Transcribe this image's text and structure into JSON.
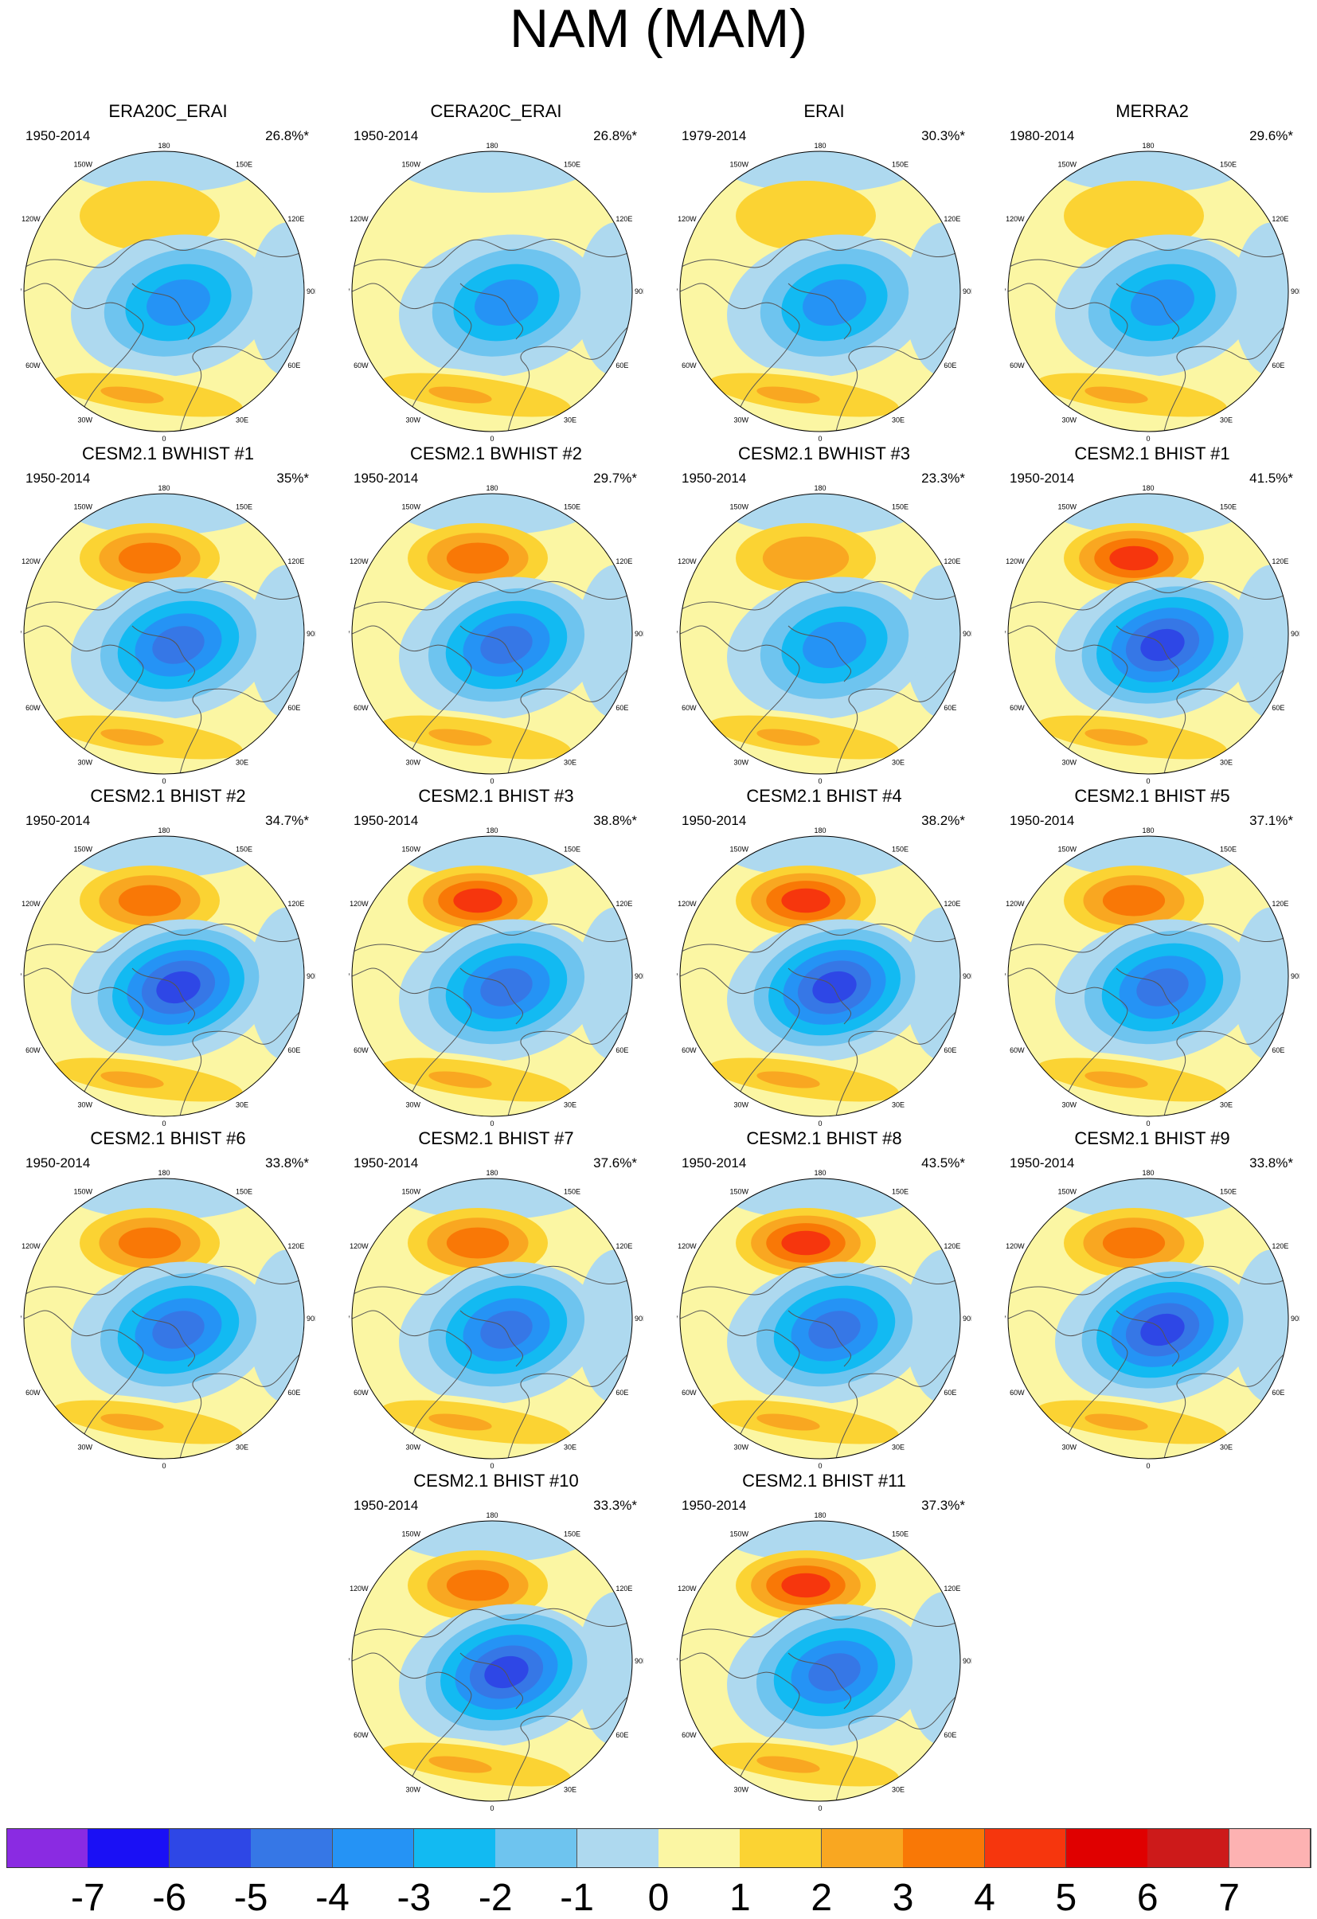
{
  "title": "NAM (MAM)",
  "map_labels": {
    "top": "180",
    "bottom": "0",
    "left_upper": "120W",
    "left_mid": "90W",
    "left_lower": "60W",
    "right_upper": "120E",
    "right_mid": "90E",
    "right_lower": "60E",
    "top_left": "150W",
    "top_right": "150E",
    "bottom_left": "30W",
    "bottom_right": "30E"
  },
  "panels": [
    {
      "title": "ERA20C_ERAI",
      "period": "1950-2014",
      "pct": "26.8%*",
      "pac": 1,
      "atl": 2,
      "arc": 3,
      "pacPeak": 1,
      "arcPeak": 4
    },
    {
      "title": "CERA20C_ERAI",
      "period": "1950-2014",
      "pct": "26.8%*",
      "pac": 0,
      "atl": 2,
      "arc": 3,
      "pacPeak": 0,
      "arcPeak": 4
    },
    {
      "title": "ERAI",
      "period": "1979-2014",
      "pct": "30.3%*",
      "pac": 1,
      "atl": 2,
      "arc": 3,
      "pacPeak": 1,
      "arcPeak": 4
    },
    {
      "title": "MERRA2",
      "period": "1980-2014",
      "pct": "29.6%*",
      "pac": 1,
      "atl": 2,
      "arc": 3,
      "pacPeak": 1,
      "arcPeak": 4
    },
    {
      "title": "CESM2.1 BWHIST #1",
      "period": "1950-2014",
      "pct": "35%*",
      "pac": 3,
      "atl": 2,
      "arc": 4,
      "pacPeak": 3,
      "arcPeak": 5
    },
    {
      "title": "CESM2.1 BWHIST #2",
      "period": "1950-2014",
      "pct": "29.7%*",
      "pac": 2,
      "atl": 2,
      "arc": 4,
      "pacPeak": 3,
      "arcPeak": 5
    },
    {
      "title": "CESM2.1 BWHIST #3",
      "period": "1950-2014",
      "pct": "23.3%*",
      "pac": 1,
      "atl": 2,
      "arc": 3,
      "pacPeak": 2,
      "arcPeak": 4
    },
    {
      "title": "CESM2.1 BHIST #1",
      "period": "1950-2014",
      "pct": "41.5%*",
      "pac": 3,
      "atl": 2,
      "arc": 5,
      "pacPeak": 4,
      "arcPeak": 6
    },
    {
      "title": "CESM2.1 BHIST #2",
      "period": "1950-2014",
      "pct": "34.7%*",
      "pac": 2,
      "atl": 2,
      "arc": 5,
      "pacPeak": 3,
      "arcPeak": 6
    },
    {
      "title": "CESM2.1 BHIST #3",
      "period": "1950-2014",
      "pct": "38.8%*",
      "pac": 3,
      "atl": 2,
      "arc": 5,
      "pacPeak": 4,
      "arcPeak": 5
    },
    {
      "title": "CESM2.1 BHIST #4",
      "period": "1950-2014",
      "pct": "38.2%*",
      "pac": 3,
      "atl": 2,
      "arc": 5,
      "pacPeak": 4,
      "arcPeak": 6
    },
    {
      "title": "CESM2.1 BHIST #5",
      "period": "1950-2014",
      "pct": "37.1%*",
      "pac": 2,
      "atl": 2,
      "arc": 5,
      "pacPeak": 3,
      "arcPeak": 5
    },
    {
      "title": "CESM2.1 BHIST #6",
      "period": "1950-2014",
      "pct": "33.8%*",
      "pac": 3,
      "atl": 2,
      "arc": 5,
      "pacPeak": 3,
      "arcPeak": 5
    },
    {
      "title": "CESM2.1 BHIST #7",
      "period": "1950-2014",
      "pct": "37.6%*",
      "pac": 2,
      "atl": 2,
      "arc": 5,
      "pacPeak": 3,
      "arcPeak": 5
    },
    {
      "title": "CESM2.1 BHIST #8",
      "period": "1950-2014",
      "pct": "43.5%*",
      "pac": 3,
      "atl": 2,
      "arc": 5,
      "pacPeak": 4,
      "arcPeak": 5
    },
    {
      "title": "CESM2.1 BHIST #9",
      "period": "1950-2014",
      "pct": "33.8%*",
      "pac": 3,
      "atl": 2,
      "arc": 5,
      "pacPeak": 3,
      "arcPeak": 6
    },
    {
      "title": "CESM2.1 BHIST #10",
      "period": "1950-2014",
      "pct": "33.3%*",
      "pac": 3,
      "atl": 2,
      "arc": 5,
      "pacPeak": 3,
      "arcPeak": 6
    },
    {
      "title": "CESM2.1 BHIST #11",
      "period": "1950-2014",
      "pct": "37.3%*",
      "pac": 3,
      "atl": 2,
      "arc": 5,
      "pacPeak": 4,
      "arcPeak": 5
    }
  ],
  "colorbar": {
    "colors": [
      "#8a2be2",
      "#1a10f5",
      "#2e47e6",
      "#3677e6",
      "#2593f5",
      "#12baf2",
      "#6ec4ef",
      "#aed9ef",
      "#fbf6a3",
      "#fbd333",
      "#f9a721",
      "#f97806",
      "#f6360d",
      "#e00000",
      "#cd1a1a",
      "#fdb2b2"
    ],
    "ticks": [
      "-7",
      "-6",
      "-5",
      "-4",
      "-3",
      "-2",
      "-1",
      "0",
      "1",
      "2",
      "3",
      "4",
      "5",
      "6",
      "7"
    ]
  }
}
